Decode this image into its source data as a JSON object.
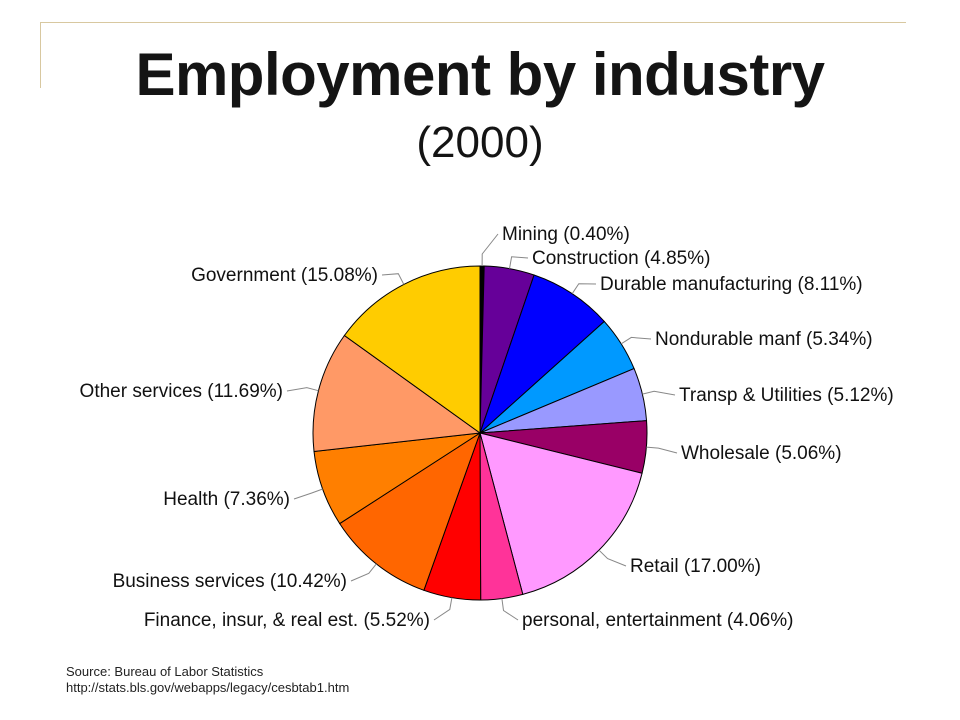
{
  "title": "Employment by industry",
  "subtitle": "(2000)",
  "source": {
    "line1": "Source: Bureau of Labor Statistics",
    "line2": "http://stats.bls.gov/webapps/legacy/cesbtab1.htm"
  },
  "chart_data": {
    "type": "pie",
    "title": "Employment by industry",
    "subtitle": "(2000)",
    "unit": "%",
    "slices": [
      {
        "label": "Mining (0.40%)",
        "value": 0.4,
        "color": "#000000"
      },
      {
        "label": "Construction (4.85%)",
        "value": 4.85,
        "color": "#660099"
      },
      {
        "label": "Durable manufacturing (8.11%)",
        "value": 8.11,
        "color": "#0000ff"
      },
      {
        "label": "Nondurable manf (5.34%)",
        "value": 5.34,
        "color": "#0099ff"
      },
      {
        "label": "Transp & Utilities (5.12%)",
        "value": 5.12,
        "color": "#9999ff"
      },
      {
        "label": "Wholesale (5.06%)",
        "value": 5.06,
        "color": "#990066"
      },
      {
        "label": "Retail (17.00%)",
        "value": 17.0,
        "color": "#ff99ff"
      },
      {
        "label": "personal, entertainment (4.06%)",
        "value": 4.06,
        "color": "#ff3399"
      },
      {
        "label": "Finance, insur, & real est. (5.52%)",
        "value": 5.52,
        "color": "#ff0000"
      },
      {
        "label": "Business services (10.42%)",
        "value": 10.42,
        "color": "#ff6600"
      },
      {
        "label": "Health (7.36%)",
        "value": 7.36,
        "color": "#ff7f00"
      },
      {
        "label": "Other services (11.69%)",
        "value": 11.69,
        "color": "#ff9966"
      },
      {
        "label": "Government (15.08%)",
        "value": 15.08,
        "color": "#ffcc00"
      }
    ]
  }
}
